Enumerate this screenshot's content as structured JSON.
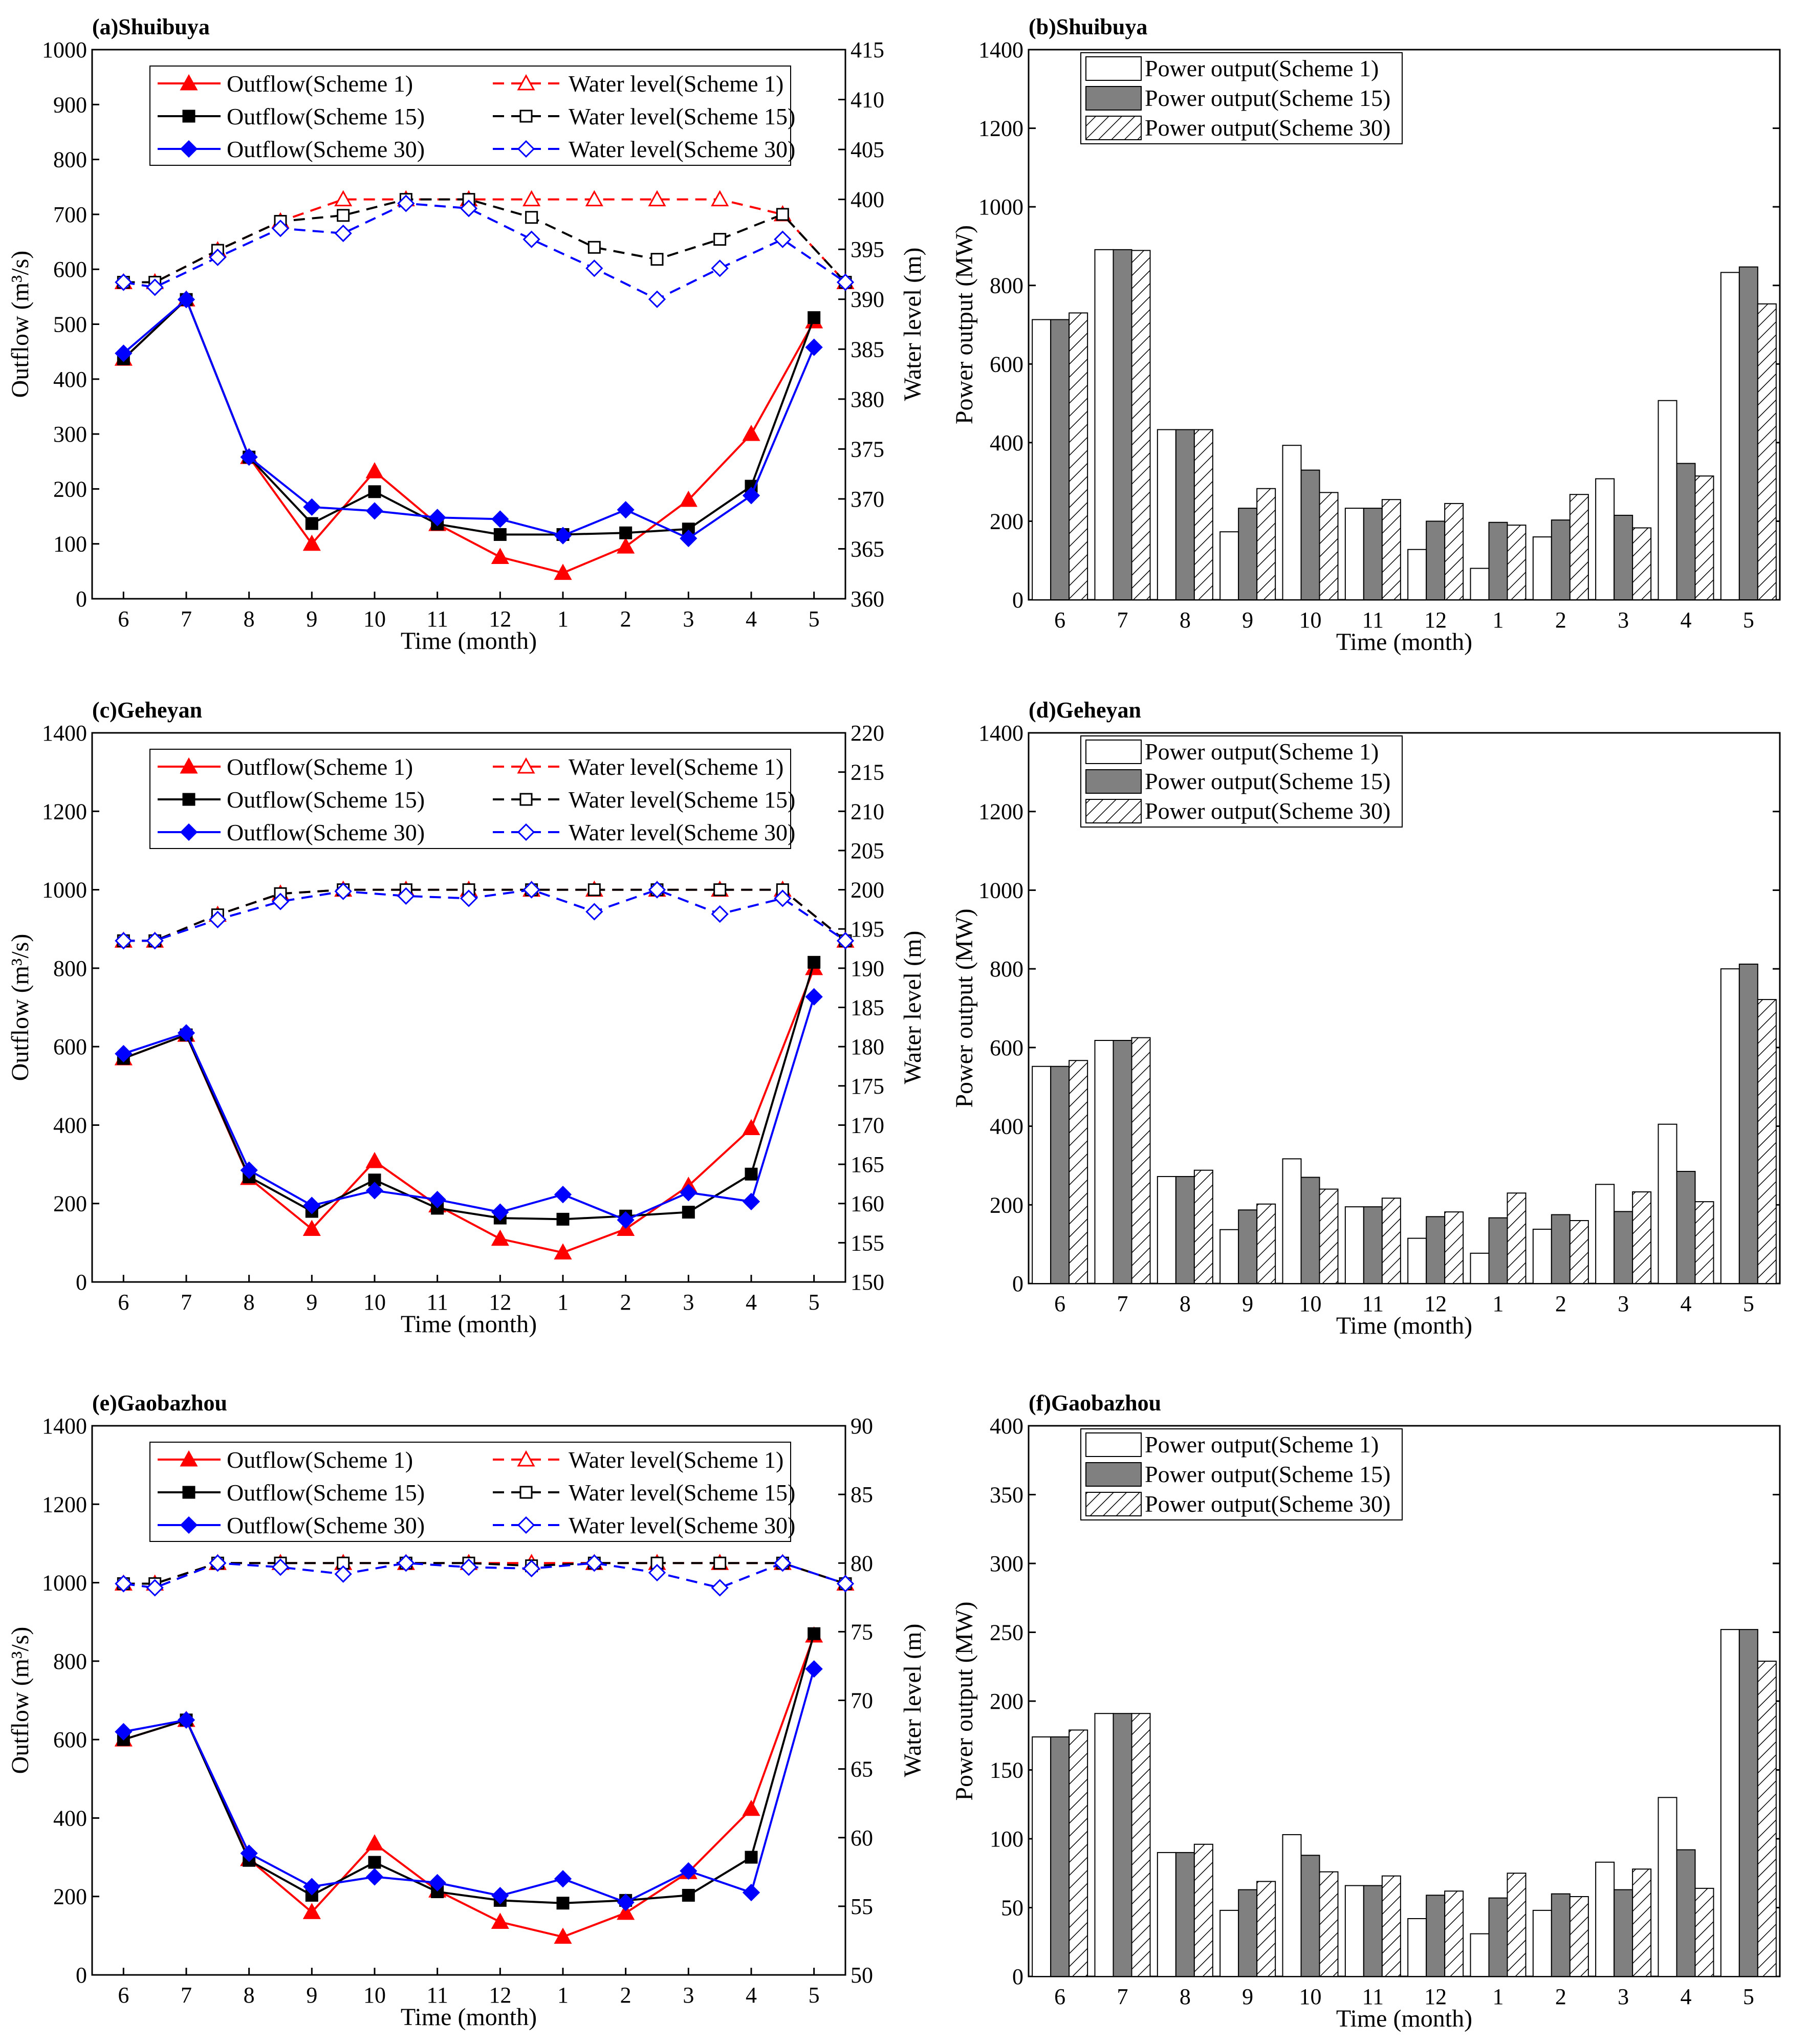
{
  "charts": [
    {
      "type": "line",
      "title": "(a)Shuibuya",
      "xlabel": "Time (month)",
      "ylabel": "Outflow (m³/s)",
      "y2label": "Water level (m)",
      "categories": [
        "6",
        "7",
        "8",
        "9",
        "10",
        "11",
        "12",
        "1",
        "2",
        "3",
        "4",
        "5"
      ],
      "ylim": [
        0,
        1000
      ],
      "yticks": [
        "0",
        "100",
        "200",
        "300",
        "400",
        "500",
        "600",
        "700",
        "800",
        "900",
        "1000"
      ],
      "y2lim": [
        360,
        415
      ],
      "y2ticks": [
        "360",
        "365",
        "370",
        "375",
        "380",
        "385",
        "390",
        "395",
        "400",
        "405",
        "410",
        "415"
      ],
      "legend": [
        "Outflow(Scheme 1)",
        "Water level(Scheme 1)",
        "Outflow(Scheme 15)",
        "Water level(Scheme 15)",
        "Outflow(Scheme 30)",
        "Water level(Scheme 30)"
      ],
      "outflow": {
        "Scheme 1": [
          437,
          545,
          258,
          100,
          232,
          136,
          76,
          47,
          95,
          180,
          300,
          505
        ],
        "Scheme 15": [
          437,
          545,
          258,
          137,
          195,
          136,
          117,
          117,
          120,
          127,
          205,
          512
        ],
        "Scheme 30": [
          447,
          545,
          258,
          167,
          160,
          148,
          145,
          115,
          162,
          110,
          188,
          458
        ]
      },
      "water_level": {
        "x": [
          0,
          0.5,
          1,
          1.5,
          2,
          2.5,
          3,
          3.5,
          4,
          4.5,
          5,
          5.5,
          6,
          6.5,
          7,
          7.5,
          8,
          8.5,
          9,
          9.5,
          10,
          10.5,
          11,
          11.5,
          12
        ],
        "Scheme 1": [
          391.7,
          391.7,
          null,
          394.9,
          null,
          397.8,
          null,
          400.0,
          null,
          400.0,
          null,
          400.0,
          null,
          400.0,
          null,
          400.0,
          null,
          400.0,
          null,
          400.0,
          null,
          398.5,
          null,
          null,
          391.7
        ],
        "Scheme 15": [
          391.7,
          391.7,
          null,
          394.9,
          null,
          397.8,
          null,
          398.4,
          null,
          400.0,
          null,
          400.0,
          null,
          398.2,
          null,
          395.2,
          null,
          394.0,
          null,
          396.0,
          null,
          398.5,
          null,
          null,
          391.7
        ],
        "Scheme 30": [
          391.7,
          391.2,
          null,
          394.2,
          null,
          397.1,
          null,
          396.6,
          null,
          399.6,
          null,
          399.1,
          null,
          396.0,
          null,
          393.1,
          null,
          390.0,
          null,
          393.1,
          null,
          396.0,
          null,
          null,
          391.7
        ]
      }
    },
    {
      "type": "bar",
      "title": "(b)Shuibuya",
      "xlabel": "Time (month)",
      "ylabel": "Power output (MW)",
      "categories": [
        "6",
        "7",
        "8",
        "9",
        "10",
        "11",
        "12",
        "1",
        "2",
        "3",
        "4",
        "5"
      ],
      "ylim": [
        0,
        1400
      ],
      "yticks": [
        "0",
        "200",
        "400",
        "600",
        "800",
        "1000",
        "1200",
        "1400"
      ],
      "legend": [
        "Power output(Scheme 1)",
        "Power output(Scheme 15)",
        "Power output(Scheme 30)"
      ],
      "series": [
        {
          "name": "Power output(Scheme 1)",
          "values": [
            713,
            891,
            433,
            173,
            393,
            233,
            128,
            80,
            160,
            308,
            507,
            833
          ]
        },
        {
          "name": "Power output(Scheme 15)",
          "values": [
            713,
            891,
            433,
            233,
            330,
            233,
            200,
            197,
            203,
            215,
            347,
            847
          ]
        },
        {
          "name": "Power output(Scheme 30)",
          "values": [
            730,
            889,
            433,
            283,
            273,
            255,
            245,
            190,
            268,
            183,
            315,
            753
          ]
        }
      ]
    },
    {
      "type": "line",
      "title": "(c)Geheyan",
      "xlabel": "Time (month)",
      "ylabel": "Outflow (m³/s)",
      "y2label": "Water level (m)",
      "categories": [
        "6",
        "7",
        "8",
        "9",
        "10",
        "11",
        "12",
        "1",
        "2",
        "3",
        "4",
        "5"
      ],
      "ylim": [
        0,
        1400
      ],
      "yticks": [
        "0",
        "200",
        "400",
        "600",
        "800",
        "1000",
        "1200",
        "1400"
      ],
      "y2lim": [
        150,
        220
      ],
      "y2ticks": [
        "150",
        "155",
        "160",
        "165",
        "170",
        "175",
        "180",
        "185",
        "190",
        "195",
        "200",
        "205",
        "210",
        "215",
        "220"
      ],
      "legend": [
        "Outflow(Scheme 1)",
        "Water level(Scheme 1)",
        "Outflow(Scheme 15)",
        "Water level(Scheme 15)",
        "Outflow(Scheme 30)",
        "Water level(Scheme 30)"
      ],
      "outflow": {
        "Scheme 1": [
          570,
          630,
          265,
          135,
          308,
          195,
          110,
          75,
          135,
          245,
          392,
          800
        ],
        "Scheme 15": [
          570,
          630,
          268,
          180,
          260,
          188,
          163,
          160,
          168,
          178,
          275,
          815
        ],
        "Scheme 30": [
          582,
          635,
          285,
          195,
          233,
          210,
          178,
          223,
          158,
          228,
          205,
          727
        ]
      },
      "water_level": {
        "x": [
          0,
          0.5,
          1,
          1.5,
          2,
          2.5,
          3,
          3.5,
          4,
          4.5,
          5,
          5.5,
          6,
          6.5,
          7,
          7.5,
          8,
          8.5,
          9,
          9.5,
          10,
          10.5,
          11,
          11.5,
          12
        ],
        "Scheme 1": [
          193.5,
          193.5,
          null,
          196.8,
          null,
          199.5,
          null,
          200.0,
          null,
          200.0,
          null,
          200.0,
          null,
          200.0,
          null,
          200.0,
          null,
          200.0,
          null,
          200.0,
          null,
          200.0,
          null,
          null,
          193.5
        ],
        "Scheme 15": [
          193.5,
          193.5,
          null,
          196.8,
          null,
          199.5,
          null,
          200.0,
          null,
          200.0,
          null,
          200.0,
          null,
          200.0,
          null,
          200.0,
          null,
          200.0,
          null,
          200.0,
          null,
          200.0,
          null,
          null,
          193.5
        ],
        "Scheme 30": [
          193.5,
          193.5,
          null,
          196.2,
          null,
          198.5,
          null,
          199.8,
          null,
          199.2,
          null,
          198.9,
          null,
          200.0,
          null,
          197.2,
          null,
          200.0,
          null,
          196.9,
          null,
          198.9,
          null,
          null,
          193.5
        ]
      }
    },
    {
      "type": "bar",
      "title": "(d)Geheyan",
      "xlabel": "Time (month)",
      "ylabel": "Power output (MW)",
      "categories": [
        "6",
        "7",
        "8",
        "9",
        "10",
        "11",
        "12",
        "1",
        "2",
        "3",
        "4",
        "5"
      ],
      "ylim": [
        0,
        1400
      ],
      "yticks": [
        "0",
        "200",
        "400",
        "600",
        "800",
        "1000",
        "1200",
        "1400"
      ],
      "legend": [
        "Power output(Scheme 1)",
        "Power output(Scheme 15)",
        "Power output(Scheme 30)"
      ],
      "series": [
        {
          "name": "Power output(Scheme 1)",
          "values": [
            552,
            618,
            272,
            137,
            317,
            195,
            115,
            77,
            138,
            252,
            405,
            800
          ]
        },
        {
          "name": "Power output(Scheme 15)",
          "values": [
            552,
            618,
            272,
            187,
            270,
            195,
            170,
            167,
            175,
            183,
            285,
            812
          ]
        },
        {
          "name": "Power output(Scheme 30)",
          "values": [
            567,
            625,
            288,
            202,
            240,
            217,
            182,
            230,
            160,
            233,
            208,
            722
          ]
        }
      ]
    },
    {
      "type": "line",
      "title": "(e)Gaobazhou",
      "xlabel": "Time (month)",
      "ylabel": "Outflow (m³/s)",
      "y2label": "Water level (m)",
      "categories": [
        "6",
        "7",
        "8",
        "9",
        "10",
        "11",
        "12",
        "1",
        "2",
        "3",
        "4",
        "5"
      ],
      "ylim": [
        0,
        1400
      ],
      "yticks": [
        "0",
        "200",
        "400",
        "600",
        "800",
        "1000",
        "1200",
        "1400"
      ],
      "y2lim": [
        50,
        90
      ],
      "y2ticks": [
        "50",
        "55",
        "60",
        "65",
        "70",
        "75",
        "80",
        "85",
        "90"
      ],
      "legend": [
        "Outflow(Scheme 1)",
        "Water level(Scheme 1)",
        "Outflow(Scheme 15)",
        "Water level(Scheme 15)",
        "Outflow(Scheme 30)",
        "Water level(Scheme 30)"
      ],
      "outflow": {
        "Scheme 1": [
          600,
          650,
          295,
          160,
          335,
          215,
          135,
          97,
          158,
          262,
          423,
          865
        ],
        "Scheme 15": [
          600,
          650,
          292,
          203,
          287,
          212,
          190,
          183,
          190,
          203,
          300,
          870
        ],
        "Scheme 30": [
          620,
          650,
          310,
          225,
          250,
          235,
          202,
          245,
          185,
          265,
          210,
          780
        ]
      },
      "water_level": {
        "x": [
          0,
          0.5,
          1,
          1.5,
          2,
          2.5,
          3,
          3.5,
          4,
          4.5,
          5,
          5.5,
          6,
          6.5,
          7,
          7.5,
          8,
          8.5,
          9,
          9.5,
          10,
          10.5,
          11,
          11.5,
          12
        ],
        "Scheme 1": [
          78.5,
          78.5,
          null,
          80.0,
          null,
          80.0,
          null,
          80.0,
          null,
          80.0,
          null,
          80.0,
          null,
          80.0,
          null,
          80.0,
          null,
          80.0,
          null,
          80.0,
          null,
          80.0,
          null,
          null,
          78.5
        ],
        "Scheme 15": [
          78.5,
          78.5,
          null,
          80.0,
          null,
          80.0,
          null,
          80.0,
          null,
          80.0,
          null,
          80.0,
          null,
          79.8,
          null,
          80.0,
          null,
          80.0,
          null,
          80.0,
          null,
          80.0,
          null,
          null,
          78.5
        ],
        "Scheme 30": [
          78.5,
          78.2,
          null,
          80.0,
          null,
          79.7,
          null,
          79.2,
          null,
          80.0,
          null,
          79.7,
          null,
          79.6,
          null,
          80.0,
          null,
          79.3,
          null,
          78.2,
          null,
          80.0,
          null,
          null,
          78.5
        ]
      }
    },
    {
      "type": "bar",
      "title": "(f)Gaobazhou",
      "xlabel": "Time (month)",
      "ylabel": "Power output (MW)",
      "categories": [
        "6",
        "7",
        "8",
        "9",
        "10",
        "11",
        "12",
        "1",
        "2",
        "3",
        "4",
        "5"
      ],
      "ylim": [
        0,
        400
      ],
      "yticks": [
        "0",
        "50",
        "100",
        "150",
        "200",
        "250",
        "300",
        "350",
        "400"
      ],
      "legend": [
        "Power output(Scheme 1)",
        "Power output(Scheme 15)",
        "Power output(Scheme 30)"
      ],
      "series": [
        {
          "name": "Power output(Scheme 1)",
          "values": [
            174,
            191,
            90,
            48,
            103,
            66,
            42,
            31,
            48,
            83,
            130,
            252
          ]
        },
        {
          "name": "Power output(Scheme 15)",
          "values": [
            174,
            191,
            90,
            63,
            88,
            66,
            59,
            57,
            60,
            63,
            92,
            252
          ]
        },
        {
          "name": "Power output(Scheme 30)",
          "values": [
            179,
            191,
            96,
            69,
            76,
            73,
            62,
            75,
            58,
            78,
            64,
            229
          ]
        }
      ]
    }
  ],
  "colors": {
    "scheme1": "#ff0000",
    "scheme15": "#000000",
    "scheme30": "#0000ff",
    "bar15": "#808080"
  }
}
